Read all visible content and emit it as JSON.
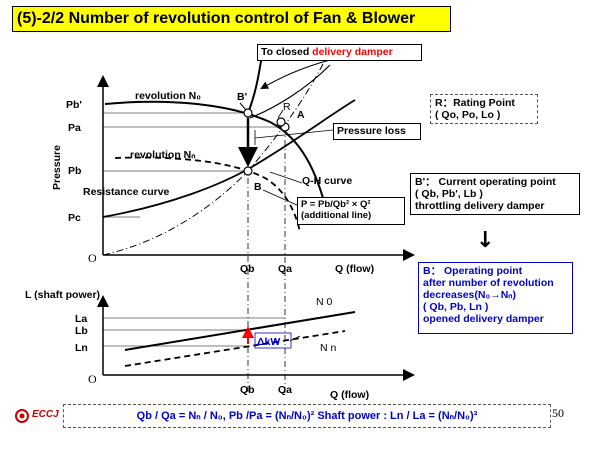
{
  "title": "(5)-2/2 Number of revolution control of Fan & Blower",
  "callouts": {
    "closed_damper_prefix": "To closed ",
    "closed_damper_red": "delivery damper",
    "pressure_loss": "Pressure loss",
    "rating_line1": "R：Rating Point",
    "rating_line2": "( Qo, Po, Lo )",
    "current_line1": "B'： Current operating point",
    "current_line2": "( Qb, Pb', Lb )",
    "current_line3": "throttling delivery  damper",
    "arrow_down": "↓",
    "operating_line1": "B： Operating point",
    "operating_line2": " after number of revolution",
    "operating_line3": " decreases(N₀→Nₙ)",
    "operating_line4": "( Qb, Pb, Ln )",
    "operating_line5": " opened delivery  damper",
    "additional_line1": "P = Pb/Qb² × Q²",
    "additional_line2": "(additional line)"
  },
  "top_chart": {
    "ylabel": "Pressure",
    "xlabel": "Q (flow)",
    "origin": "O",
    "y_ticks": [
      "Pb'",
      "Pa",
      "Pb",
      "Pc"
    ],
    "x_ticks": [
      "Qb",
      "Qa"
    ],
    "curve_labels": {
      "revolution_n0": "revolution N₀",
      "revolution_nn": "revolution Nₙ",
      "resistance": "Resistance curve",
      "qh": "Q-H curve"
    },
    "points": {
      "b_prime": "B'",
      "r": "R",
      "a": "A",
      "b": "B"
    }
  },
  "bottom_chart": {
    "ylabel": "L (shaft power)",
    "xlabel": "Q (flow)",
    "origin": "O",
    "y_ticks": [
      "La",
      "Lb",
      "Ln"
    ],
    "x_ticks": [
      "Qb",
      "Qa"
    ],
    "line_labels": {
      "n0": "N 0",
      "nn": "N n"
    },
    "delta": "ΔkW"
  },
  "formula": "Qb / Qa = Nₙ / N₀,    Pb /Pa = (Nₙ/N₀)²    Shaft  power : Ln / La = (Nₙ/N₀)³",
  "logo_text": "ECCJ",
  "page_number": "50",
  "colors": {
    "title_bg": "#ffff00",
    "blue": "#0000cc",
    "red": "#ff0000",
    "logo": "#cc0000"
  }
}
